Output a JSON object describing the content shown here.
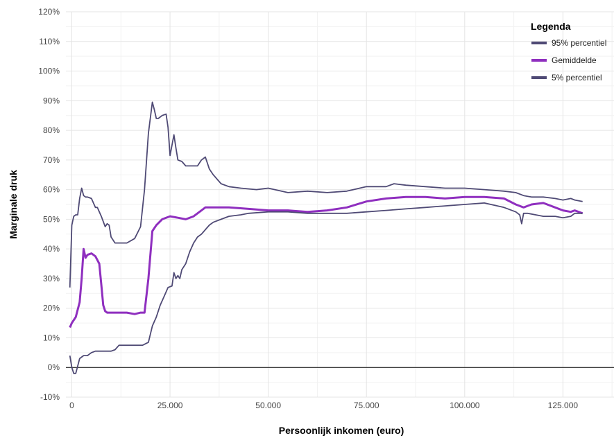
{
  "chart_data": {
    "type": "line",
    "xlabel": "Persoonlijk inkomen (euro)",
    "ylabel": "Marginale druk",
    "xlim": [
      -1500,
      138000
    ],
    "ylim": [
      -10,
      120
    ],
    "x_ticks": [
      0,
      25000,
      50000,
      75000,
      100000,
      125000
    ],
    "x_tick_labels": [
      "0",
      "25.000",
      "50.000",
      "75.000",
      "100.000",
      "125.000"
    ],
    "y_ticks": [
      -10,
      0,
      10,
      20,
      30,
      40,
      50,
      60,
      70,
      80,
      90,
      100,
      110,
      120
    ],
    "y_tick_labels": [
      "-10%",
      "0%",
      "10%",
      "20%",
      "30%",
      "40%",
      "50%",
      "60%",
      "70%",
      "80%",
      "90%",
      "100%",
      "110%",
      "120%"
    ],
    "grid": true,
    "zero_line": true,
    "legend": {
      "title": "Legenda",
      "position": "top-right",
      "entries": [
        "95% percentiel",
        "Gemiddelde",
        "5% percentiel"
      ]
    },
    "series": [
      {
        "name": "95% percentiel",
        "color": "#4f4a75",
        "width": "thin",
        "x": [
          -500,
          0,
          500,
          1000,
          1500,
          2000,
          2500,
          3000,
          3500,
          4000,
          5000,
          6000,
          6500,
          7500,
          8500,
          9000,
          9500,
          10000,
          11000,
          12000,
          14000,
          16000,
          17500,
          18500,
          19500,
          20500,
          21000,
          21500,
          22000,
          23000,
          24000,
          24500,
          25000,
          25500,
          26000,
          26500,
          27000,
          28000,
          29000,
          30000,
          31000,
          32000,
          33000,
          34000,
          35000,
          36000,
          38000,
          40000,
          43000,
          47000,
          50000,
          55000,
          60000,
          65000,
          70000,
          75000,
          80000,
          82000,
          85000,
          90000,
          95000,
          100000,
          105000,
          110000,
          113000,
          115000,
          117000,
          120000,
          123000,
          125000,
          127000,
          128000,
          130000
        ],
        "values": [
          27,
          48,
          51,
          51.5,
          51.5,
          57,
          60.5,
          58,
          57.5,
          57.5,
          57,
          54,
          54,
          51,
          47.5,
          48.5,
          48,
          44,
          42,
          42,
          42,
          43.5,
          47.5,
          60,
          79,
          89.5,
          87,
          84,
          84,
          85,
          85.5,
          81,
          71.5,
          75,
          78.5,
          74,
          70,
          69.5,
          68,
          68,
          68,
          68,
          70,
          71,
          67,
          65,
          62,
          61,
          60.5,
          60,
          60.5,
          59,
          59.5,
          59,
          59.5,
          61,
          61,
          62,
          61.5,
          61,
          60.5,
          60.5,
          60,
          59.5,
          59,
          58,
          57.5,
          57.5,
          57,
          56.5,
          57,
          56.5,
          56
        ]
      },
      {
        "name": "Gemiddelde",
        "color": "#8f2fbf",
        "width": "thick",
        "x": [
          -500,
          0,
          1000,
          2000,
          2500,
          3000,
          3500,
          4000,
          5000,
          6000,
          7000,
          7500,
          8000,
          8500,
          9000,
          10000,
          12000,
          14000,
          16000,
          17500,
          18500,
          19500,
          20500,
          21500,
          23000,
          25000,
          27000,
          29000,
          31000,
          33000,
          34000,
          35000,
          40000,
          45000,
          50000,
          55000,
          60000,
          65000,
          70000,
          75000,
          80000,
          85000,
          90000,
          95000,
          100000,
          105000,
          110000,
          113000,
          115000,
          117000,
          120000,
          123000,
          125000,
          127000,
          128000,
          130000
        ],
        "values": [
          13.5,
          15,
          17,
          22,
          30,
          40,
          37,
          38,
          38.5,
          37.5,
          35,
          28,
          21,
          19,
          18.5,
          18.5,
          18.5,
          18.5,
          18,
          18.5,
          18.5,
          30,
          46,
          48,
          50,
          51,
          50.5,
          50,
          51,
          53,
          54,
          54,
          54,
          53.5,
          53,
          53,
          52.5,
          53,
          54,
          56,
          57,
          57.5,
          57.5,
          57,
          57.5,
          57.5,
          57,
          55,
          54,
          55,
          55.5,
          54,
          53,
          52.5,
          53,
          52
        ]
      },
      {
        "name": "5% percentiel",
        "color": "#4f4a75",
        "width": "thin",
        "x": [
          -500,
          0,
          500,
          1000,
          2000,
          3000,
          4000,
          5000,
          6000,
          8000,
          10000,
          11000,
          12000,
          14000,
          16000,
          18000,
          19500,
          20500,
          21500,
          22500,
          23500,
          24500,
          25500,
          26000,
          26500,
          27000,
          27500,
          28000,
          29000,
          30000,
          31000,
          32000,
          33000,
          35000,
          36000,
          38000,
          40000,
          43000,
          45000,
          50000,
          55000,
          60000,
          65000,
          70000,
          75000,
          80000,
          85000,
          90000,
          95000,
          100000,
          105000,
          110000,
          113000,
          114000,
          114500,
          115000,
          116000,
          120000,
          123000,
          125000,
          127000,
          128000,
          130000
        ],
        "values": [
          4,
          0,
          -2,
          -2,
          3,
          4,
          4,
          5,
          5.5,
          5.5,
          5.5,
          6,
          7.5,
          7.5,
          7.5,
          7.5,
          8.5,
          14,
          17,
          21,
          24,
          27,
          27.5,
          32,
          30,
          31,
          30,
          33,
          35,
          39,
          42,
          44,
          45,
          48,
          49,
          50,
          51,
          51.5,
          52,
          52.5,
          52.5,
          52,
          52,
          52,
          52.5,
          53,
          53.5,
          54,
          54.5,
          55,
          55.5,
          54,
          52.5,
          51.5,
          48.5,
          52,
          52,
          51,
          51,
          50.5,
          51,
          52,
          52
        ]
      }
    ]
  }
}
